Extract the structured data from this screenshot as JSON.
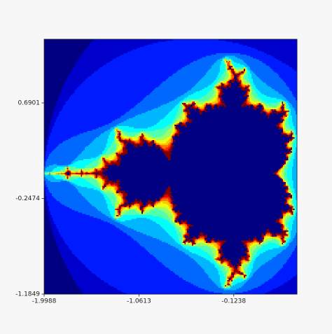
{
  "chart_data": {
    "type": "image",
    "xlim": [
      -1.9988,
      0.5012
    ],
    "ylim": [
      -1.1849,
      1.3151
    ],
    "xticks": [
      -1.9988,
      -1.0613,
      -0.1238
    ],
    "yticks": [
      0.6901,
      -0.2474,
      -1.1849
    ]
  }
}
